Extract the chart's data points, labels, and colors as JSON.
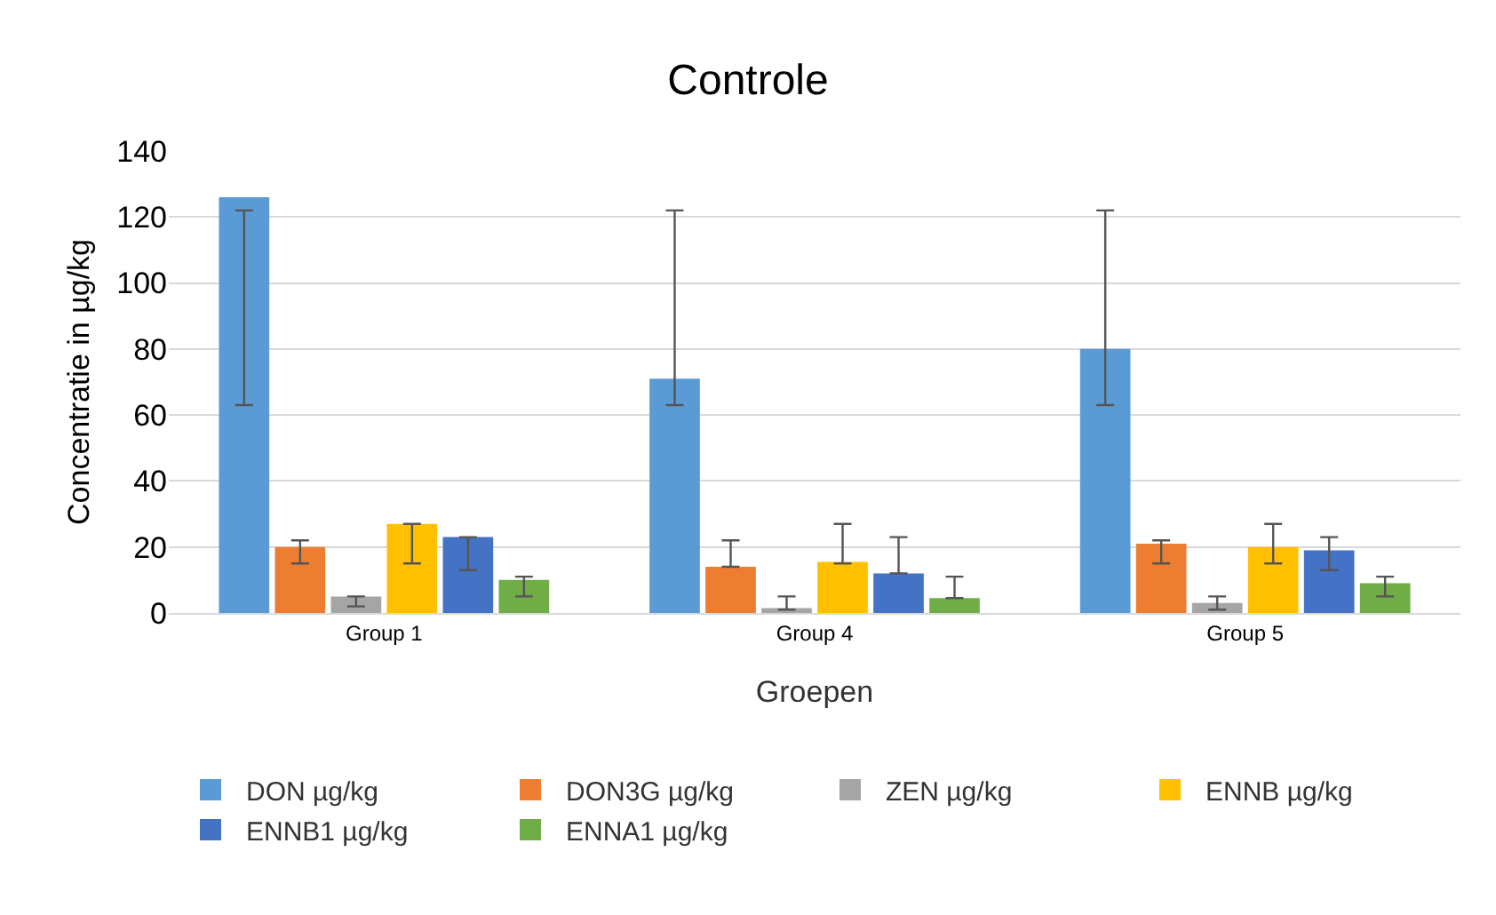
{
  "chart_data": {
    "type": "bar",
    "title": "Controle",
    "xlabel": "Groepen",
    "ylabel": "Concentratie in µg/kg",
    "categories": [
      "Group 1",
      "Group 4",
      "Group 5"
    ],
    "series": [
      {
        "name": "DON µg/kg",
        "color": "#5b9bd5",
        "values": [
          126,
          71,
          80
        ],
        "errors": [
          [
            63,
            122
          ],
          [
            63,
            122
          ],
          [
            63,
            122
          ]
        ]
      },
      {
        "name": "DON3G µg/kg",
        "color": "#ed7d31",
        "values": [
          20,
          14,
          21
        ],
        "errors": [
          [
            15,
            22
          ],
          [
            14,
            22
          ],
          [
            15,
            22
          ]
        ]
      },
      {
        "name": "ZEN µg/kg",
        "color": "#a5a5a5",
        "values": [
          5,
          1.5,
          3
        ],
        "errors": [
          [
            2,
            5
          ],
          [
            1,
            5
          ],
          [
            1,
            5
          ]
        ]
      },
      {
        "name": "ENNB µg/kg",
        "color": "#ffc000",
        "values": [
          27,
          15.5,
          20
        ],
        "errors": [
          [
            15,
            27
          ],
          [
            15,
            27
          ],
          [
            15,
            27
          ]
        ]
      },
      {
        "name": "ENNB1 µg/kg",
        "color": "#4472c4",
        "values": [
          23,
          12,
          19
        ],
        "errors": [
          [
            13,
            23
          ],
          [
            12,
            23
          ],
          [
            13,
            23
          ]
        ]
      },
      {
        "name": "ENNA1 µg/kg",
        "color": "#70ad47",
        "values": [
          10,
          4.5,
          9
        ],
        "errors": [
          [
            5,
            11
          ],
          [
            4.5,
            11
          ],
          [
            5,
            11
          ]
        ]
      }
    ],
    "ylim": [
      0,
      140
    ],
    "yticks": [
      0,
      20,
      40,
      60,
      80,
      100,
      120,
      140
    ],
    "grid": "y",
    "legend": "bottom"
  }
}
